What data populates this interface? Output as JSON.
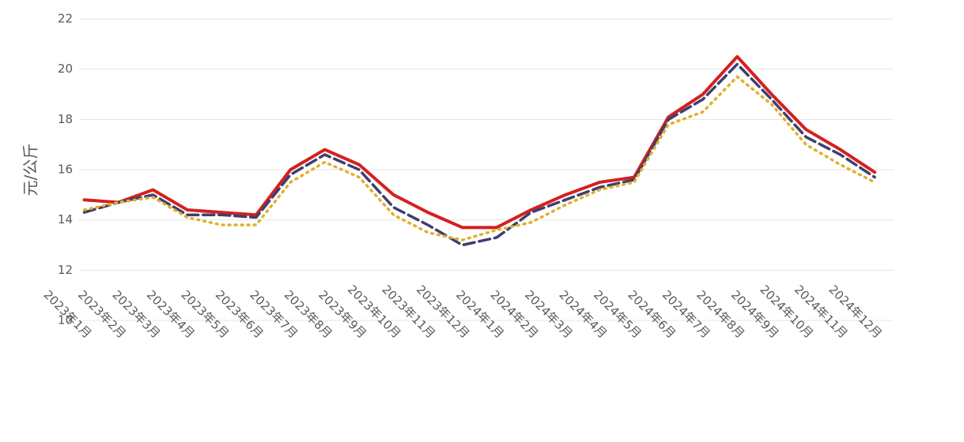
{
  "chart_data": {
    "type": "line",
    "y_label": "元/公斤",
    "categories": [
      "2023年1月",
      "2023年2月",
      "2023年3月",
      "2023年4月",
      "2023年5月",
      "2023年6月",
      "2023年7月",
      "2023年8月",
      "2023年9月",
      "2023年10月",
      "2023年11月",
      "2023年12月",
      "2024年1月",
      "2024年2月",
      "2024年3月",
      "2024年4月",
      "2024年5月",
      "2024年6月",
      "2024年7月",
      "2024年8月",
      "2024年9月",
      "2024年10月",
      "2024年11月",
      "2024年12月"
    ],
    "series": [
      {
        "color": "#d42020",
        "style": "solid",
        "values": [
          14.8,
          14.7,
          15.2,
          14.4,
          14.3,
          14.2,
          16.0,
          16.8,
          16.2,
          15.0,
          14.3,
          13.7,
          13.7,
          14.4,
          15.0,
          15.5,
          15.7,
          18.1,
          19.0,
          20.5,
          19.0,
          17.6,
          16.8,
          15.9
        ]
      },
      {
        "color": "#3f3f6e",
        "style": "dashed",
        "values": [
          14.3,
          14.7,
          15.0,
          14.2,
          14.2,
          14.1,
          15.8,
          16.6,
          16.0,
          14.5,
          13.8,
          13.0,
          13.3,
          14.3,
          14.8,
          15.3,
          15.6,
          18.0,
          18.8,
          20.2,
          18.8,
          17.3,
          16.6,
          15.7
        ]
      },
      {
        "color": "#e0b030",
        "style": "dotted",
        "values": [
          14.4,
          14.7,
          14.9,
          14.1,
          13.8,
          13.8,
          15.5,
          16.3,
          15.7,
          14.2,
          13.5,
          13.2,
          13.6,
          13.9,
          14.6,
          15.2,
          15.5,
          17.8,
          18.3,
          19.7,
          18.6,
          17.0,
          16.2,
          15.5
        ]
      }
    ],
    "ylim": [
      10,
      22
    ],
    "yticks": [
      10,
      12,
      14,
      16,
      18,
      20,
      22
    ],
    "grid": true
  }
}
